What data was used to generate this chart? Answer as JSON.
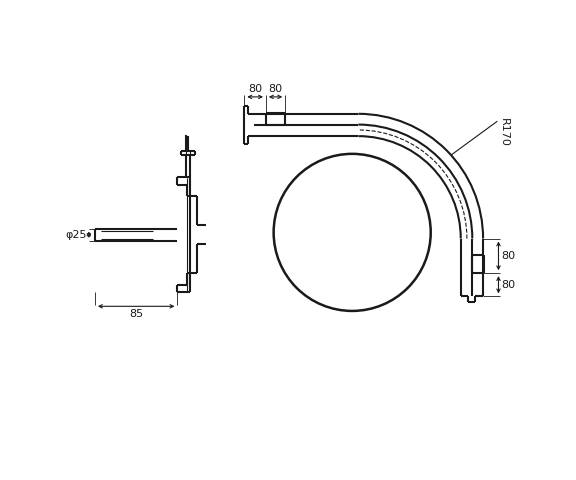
{
  "bg_color": "#ffffff",
  "line_color": "#1a1a1a",
  "lw_main": 1.5,
  "lw_thin": 0.8,
  "lw_dim": 0.8,
  "font_size": 8,
  "dim_color": "#1a1a1a"
}
